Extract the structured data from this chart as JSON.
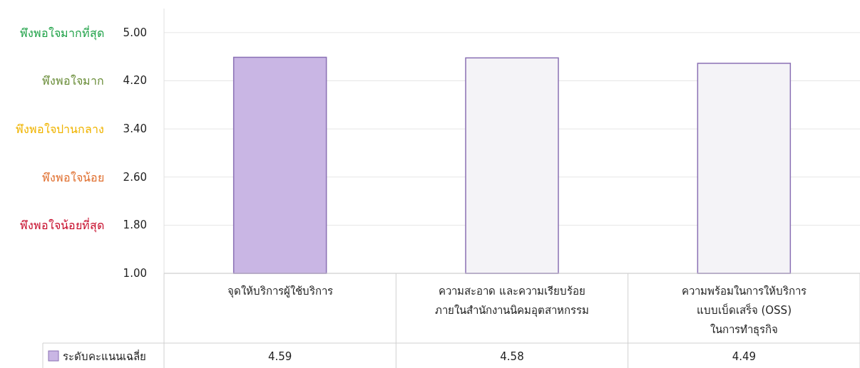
{
  "chart_data": {
    "type": "bar",
    "categories": [
      "จุดให้บริการผู้ใช้บริการ",
      "ความสะอาด และความเรียบร้อย ภายในสำนักงานนิคมอุตสาหกรรม",
      "ความพร้อมในการให้บริการ แบบเบ็ดเสร็จ (OSS) ในการทำธุรกิจ"
    ],
    "series": [
      {
        "name": "ระดับคะแนนเฉลี่ย",
        "color": "#c9b6e4",
        "colors": [
          "#c9b6e4",
          "#f4f3f7",
          "#f4f3f7"
        ],
        "values": [
          4.59,
          4.58,
          4.49
        ]
      }
    ],
    "ylim": [
      1,
      5.4
    ],
    "yticks": [
      {
        "value": 1,
        "label": "1.00"
      },
      {
        "value": 1.8,
        "label": "1.80"
      },
      {
        "value": 2.6,
        "label": "2.60"
      },
      {
        "value": 3.4,
        "label": "3.40"
      },
      {
        "value": 4.2,
        "label": "4.20"
      },
      {
        "value": 5,
        "label": "5.00"
      }
    ],
    "annotations": [
      "พึงพอใจมากที่สุด",
      "พึงพอใจมาก",
      "พึงพอใจปานกลาง",
      "พึงพอใจน้อย",
      "พึงพอใจน้อยที่สุด"
    ],
    "grid": "y",
    "data_labels": true,
    "legend": "bottom"
  }
}
